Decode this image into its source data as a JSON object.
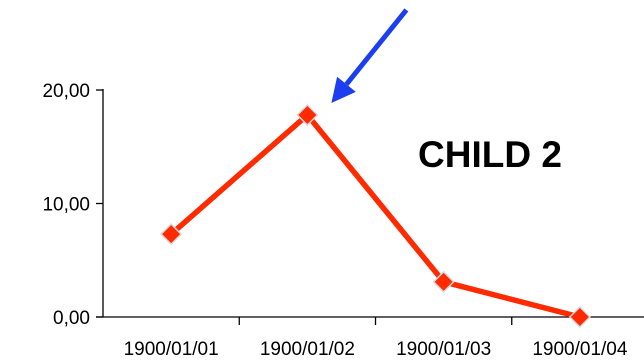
{
  "chart_data": {
    "type": "line",
    "title": "",
    "xlabel": "",
    "ylabel": "",
    "categories": [
      "1900/01/01",
      "1900/01/02",
      "1900/01/03",
      "1900/01/04"
    ],
    "y_tick_labels": [
      "0,00",
      "10,00",
      "20,00"
    ],
    "y_ticks": [
      0,
      10,
      20
    ],
    "ylim": [
      0,
      20
    ],
    "grid": false,
    "legend": "none",
    "series": [
      {
        "x": [
          1.0,
          2.0,
          3.0,
          4.0
        ],
        "values": [
          7.3,
          17.8,
          3.1,
          0.0
        ],
        "color": "#ff2a00",
        "marker": "diamond"
      }
    ],
    "annotations": [
      {
        "text": "CHILD 2"
      }
    ],
    "arrow": {
      "color": "#1a3ef0",
      "points_to_category": "1900/01/02"
    }
  }
}
